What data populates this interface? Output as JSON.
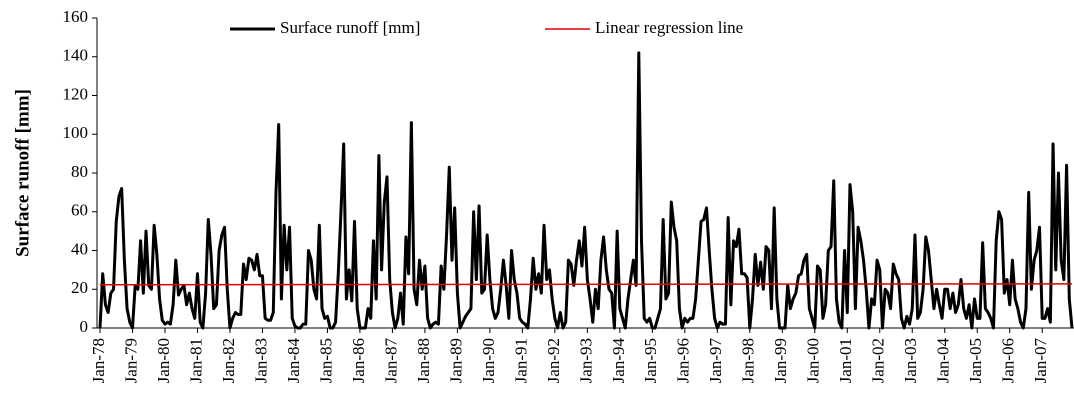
{
  "chart_data": {
    "type": "line",
    "ylabel": "Surface runoff [mm]",
    "ylim": [
      0,
      160
    ],
    "yticks": [
      0,
      20,
      40,
      60,
      80,
      100,
      120,
      140,
      160
    ],
    "grid": false,
    "legend": "top",
    "categories": [
      "Jan-78",
      null,
      null,
      null,
      null,
      null,
      null,
      null,
      null,
      null,
      null,
      null,
      "Jan-79",
      null,
      null,
      null,
      null,
      null,
      null,
      null,
      null,
      null,
      null,
      null,
      "Jan-80",
      null,
      null,
      null,
      null,
      null,
      null,
      null,
      null,
      null,
      null,
      null,
      "Jan-81",
      null,
      null,
      null,
      null,
      null,
      null,
      null,
      null,
      null,
      null,
      null,
      "Jan-82",
      null,
      null,
      null,
      null,
      null,
      null,
      null,
      null,
      null,
      null,
      null,
      "Jan-83",
      null,
      null,
      null,
      null,
      null,
      null,
      null,
      null,
      null,
      null,
      null,
      "Jan-84",
      null,
      null,
      null,
      null,
      null,
      null,
      null,
      null,
      null,
      null,
      null,
      "Jan-85",
      null,
      null,
      null,
      null,
      null,
      null,
      null,
      null,
      null,
      null,
      null,
      "Jan-86",
      null,
      null,
      null,
      null,
      null,
      null,
      null,
      null,
      null,
      null,
      null,
      "Jan-87",
      null,
      null,
      null,
      null,
      null,
      null,
      null,
      null,
      null,
      null,
      null,
      "Jan-88",
      null,
      null,
      null,
      null,
      null,
      null,
      null,
      null,
      null,
      null,
      null,
      "Jan-89",
      null,
      null,
      null,
      null,
      null,
      null,
      null,
      null,
      null,
      null,
      null,
      "Jan-90",
      null,
      null,
      null,
      null,
      null,
      null,
      null,
      null,
      null,
      null,
      null,
      "Jan-91",
      null,
      null,
      null,
      null,
      null,
      null,
      null,
      null,
      null,
      null,
      null,
      "Jan-92",
      null,
      null,
      null,
      null,
      null,
      null,
      null,
      null,
      null,
      null,
      null,
      "Jan-93",
      null,
      null,
      null,
      null,
      null,
      null,
      null,
      null,
      null,
      null,
      null,
      "Jan-94",
      null,
      null,
      null,
      null,
      null,
      null,
      null,
      null,
      null,
      null,
      null,
      "Jan-95",
      null,
      null,
      null,
      null,
      null,
      null,
      null,
      null,
      null,
      null,
      null,
      "Jan-96",
      null,
      null,
      null,
      null,
      null,
      null,
      null,
      null,
      null,
      null,
      null,
      "Jan-97",
      null,
      null,
      null,
      null,
      null,
      null,
      null,
      null,
      null,
      null,
      null,
      "Jan-98",
      null,
      null,
      null,
      null,
      null,
      null,
      null,
      null,
      null,
      null,
      null,
      "Jan-99",
      null,
      null,
      null,
      null,
      null,
      null,
      null,
      null,
      null,
      null,
      null,
      "Jan-00",
      null,
      null,
      null,
      null,
      null,
      null,
      null,
      null,
      null,
      null,
      null,
      "Jan-01",
      null,
      null,
      null,
      null,
      null,
      null,
      null,
      null,
      null,
      null,
      null,
      "Jan-02",
      null,
      null,
      null,
      null,
      null,
      null,
      null,
      null,
      null,
      null,
      null,
      "Jan-03",
      null,
      null,
      null,
      null,
      null,
      null,
      null,
      null,
      null,
      null,
      null,
      "Jan-04",
      null,
      null,
      null,
      null,
      null,
      null,
      null,
      null,
      null,
      null,
      null,
      "Jan-05",
      null,
      null,
      null,
      null,
      null,
      null,
      null,
      null,
      null,
      null,
      null,
      "Jan-06",
      null,
      null,
      null,
      null,
      null,
      null,
      null,
      null,
      null,
      null,
      null,
      "Jan-07",
      null,
      null,
      null,
      null,
      null,
      null,
      null,
      null,
      null,
      null,
      null
    ],
    "series": [
      {
        "name": "Surface runoff [mm]",
        "color": "#000000",
        "values": [
          0,
          28,
          12,
          8,
          18,
          20,
          55,
          68,
          72,
          35,
          10,
          3,
          0,
          22,
          20,
          45,
          18,
          50,
          22,
          20,
          53,
          38,
          15,
          4,
          2,
          3,
          2,
          12,
          35,
          17,
          20,
          22,
          12,
          18,
          10,
          5,
          28,
          3,
          0,
          18,
          56,
          38,
          10,
          12,
          40,
          48,
          52,
          20,
          0,
          5,
          8,
          7,
          7,
          33,
          25,
          36,
          35,
          30,
          38,
          27,
          27,
          5,
          4,
          4,
          8,
          70,
          105,
          15,
          53,
          30,
          52,
          5,
          1,
          0,
          0,
          2,
          2,
          40,
          35,
          20,
          15,
          53,
          10,
          5,
          6,
          0,
          0,
          3,
          28,
          60,
          95,
          15,
          30,
          14,
          55,
          10,
          0,
          0,
          0,
          10,
          5,
          45,
          15,
          89,
          30,
          65,
          78,
          25,
          8,
          0,
          5,
          18,
          2,
          47,
          28,
          106,
          20,
          12,
          35,
          20,
          32,
          5,
          0,
          2,
          3,
          2,
          32,
          20,
          48,
          83,
          35,
          62,
          18,
          0,
          3,
          6,
          8,
          10,
          60,
          25,
          63,
          18,
          20,
          48,
          25,
          10,
          5,
          8,
          20,
          35,
          22,
          5,
          40,
          25,
          18,
          5,
          3,
          2,
          0,
          15,
          36,
          20,
          28,
          18,
          53,
          25,
          30,
          15,
          5,
          0,
          8,
          0,
          3,
          35,
          33,
          22,
          35,
          45,
          32,
          52,
          25,
          15,
          3,
          20,
          10,
          35,
          47,
          30,
          20,
          18,
          0,
          50,
          10,
          5,
          0,
          15,
          25,
          35,
          22,
          142,
          45,
          5,
          3,
          5,
          0,
          0,
          5,
          10,
          56,
          15,
          18,
          65,
          52,
          45,
          10,
          0,
          5,
          3,
          5,
          5,
          15,
          35,
          55,
          56,
          62,
          40,
          20,
          5,
          0,
          3,
          2,
          2,
          57,
          12,
          45,
          42,
          51,
          28,
          28,
          26,
          0,
          15,
          38,
          22,
          34,
          20,
          42,
          40,
          10,
          62,
          15,
          0,
          0,
          0,
          22,
          10,
          15,
          18,
          27,
          28,
          35,
          38,
          10,
          5,
          0,
          32,
          30,
          5,
          12,
          40,
          42,
          76,
          15,
          3,
          0,
          40,
          8,
          74,
          60,
          10,
          52,
          45,
          35,
          20,
          0,
          15,
          12,
          35,
          30,
          0,
          20,
          18,
          10,
          33,
          28,
          25,
          5,
          0,
          6,
          2,
          10,
          48,
          5,
          8,
          20,
          47,
          40,
          25,
          10,
          20,
          12,
          5,
          20,
          20,
          10,
          18,
          8,
          12,
          25,
          10,
          5,
          12,
          0,
          15,
          5,
          5,
          44,
          10,
          8,
          5,
          0,
          45,
          60,
          56,
          18,
          25,
          12,
          35,
          15,
          10,
          3,
          0,
          10,
          70,
          20,
          35,
          40,
          52,
          5,
          5,
          10,
          3,
          95,
          30,
          80,
          35,
          25,
          84,
          15,
          0
        ]
      },
      {
        "name": "Linear regression line",
        "color": "#e00000",
        "from": 22.3,
        "to": 22.8
      }
    ]
  }
}
